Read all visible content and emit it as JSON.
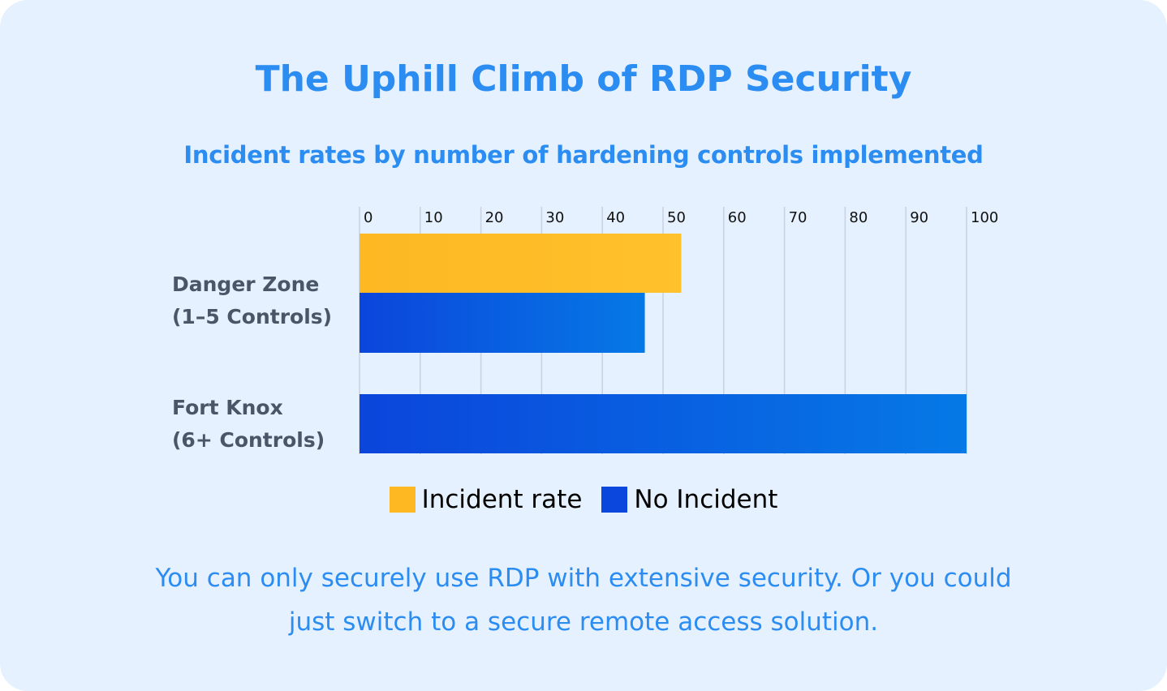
{
  "title": "The Uphill Climb of RDP Security",
  "subtitle": "Incident rates by number of hardening controls implemented",
  "footer": {
    "line1": "You can only securely use RDP with extensive security. Or you could",
    "line2": "just switch to a secure remote access solution."
  },
  "colors": {
    "incident": "#fdb822",
    "no_incident": "#0b47dc",
    "accent": "#2b8cf2"
  },
  "chart_data": {
    "type": "bar",
    "orientation": "horizontal",
    "title": "The Uphill Climb of RDP Security",
    "subtitle": "Incident rates by number of hardening controls implemented",
    "categories": [
      {
        "line1": "Danger Zone",
        "line2": "(1–5 Controls)"
      },
      {
        "line1": "Fort Knox",
        "line2": "(6+ Controls)"
      }
    ],
    "series": [
      {
        "name": "Incident rate",
        "values": [
          53,
          0
        ]
      },
      {
        "name": "No Incident",
        "values": [
          47,
          100
        ]
      }
    ],
    "xlim": [
      0,
      100
    ],
    "ticks": [
      "0",
      "10",
      "20",
      "30",
      "40",
      "50",
      "60",
      "70",
      "80",
      "90",
      "100"
    ],
    "grid": true,
    "legend_position": "bottom"
  }
}
